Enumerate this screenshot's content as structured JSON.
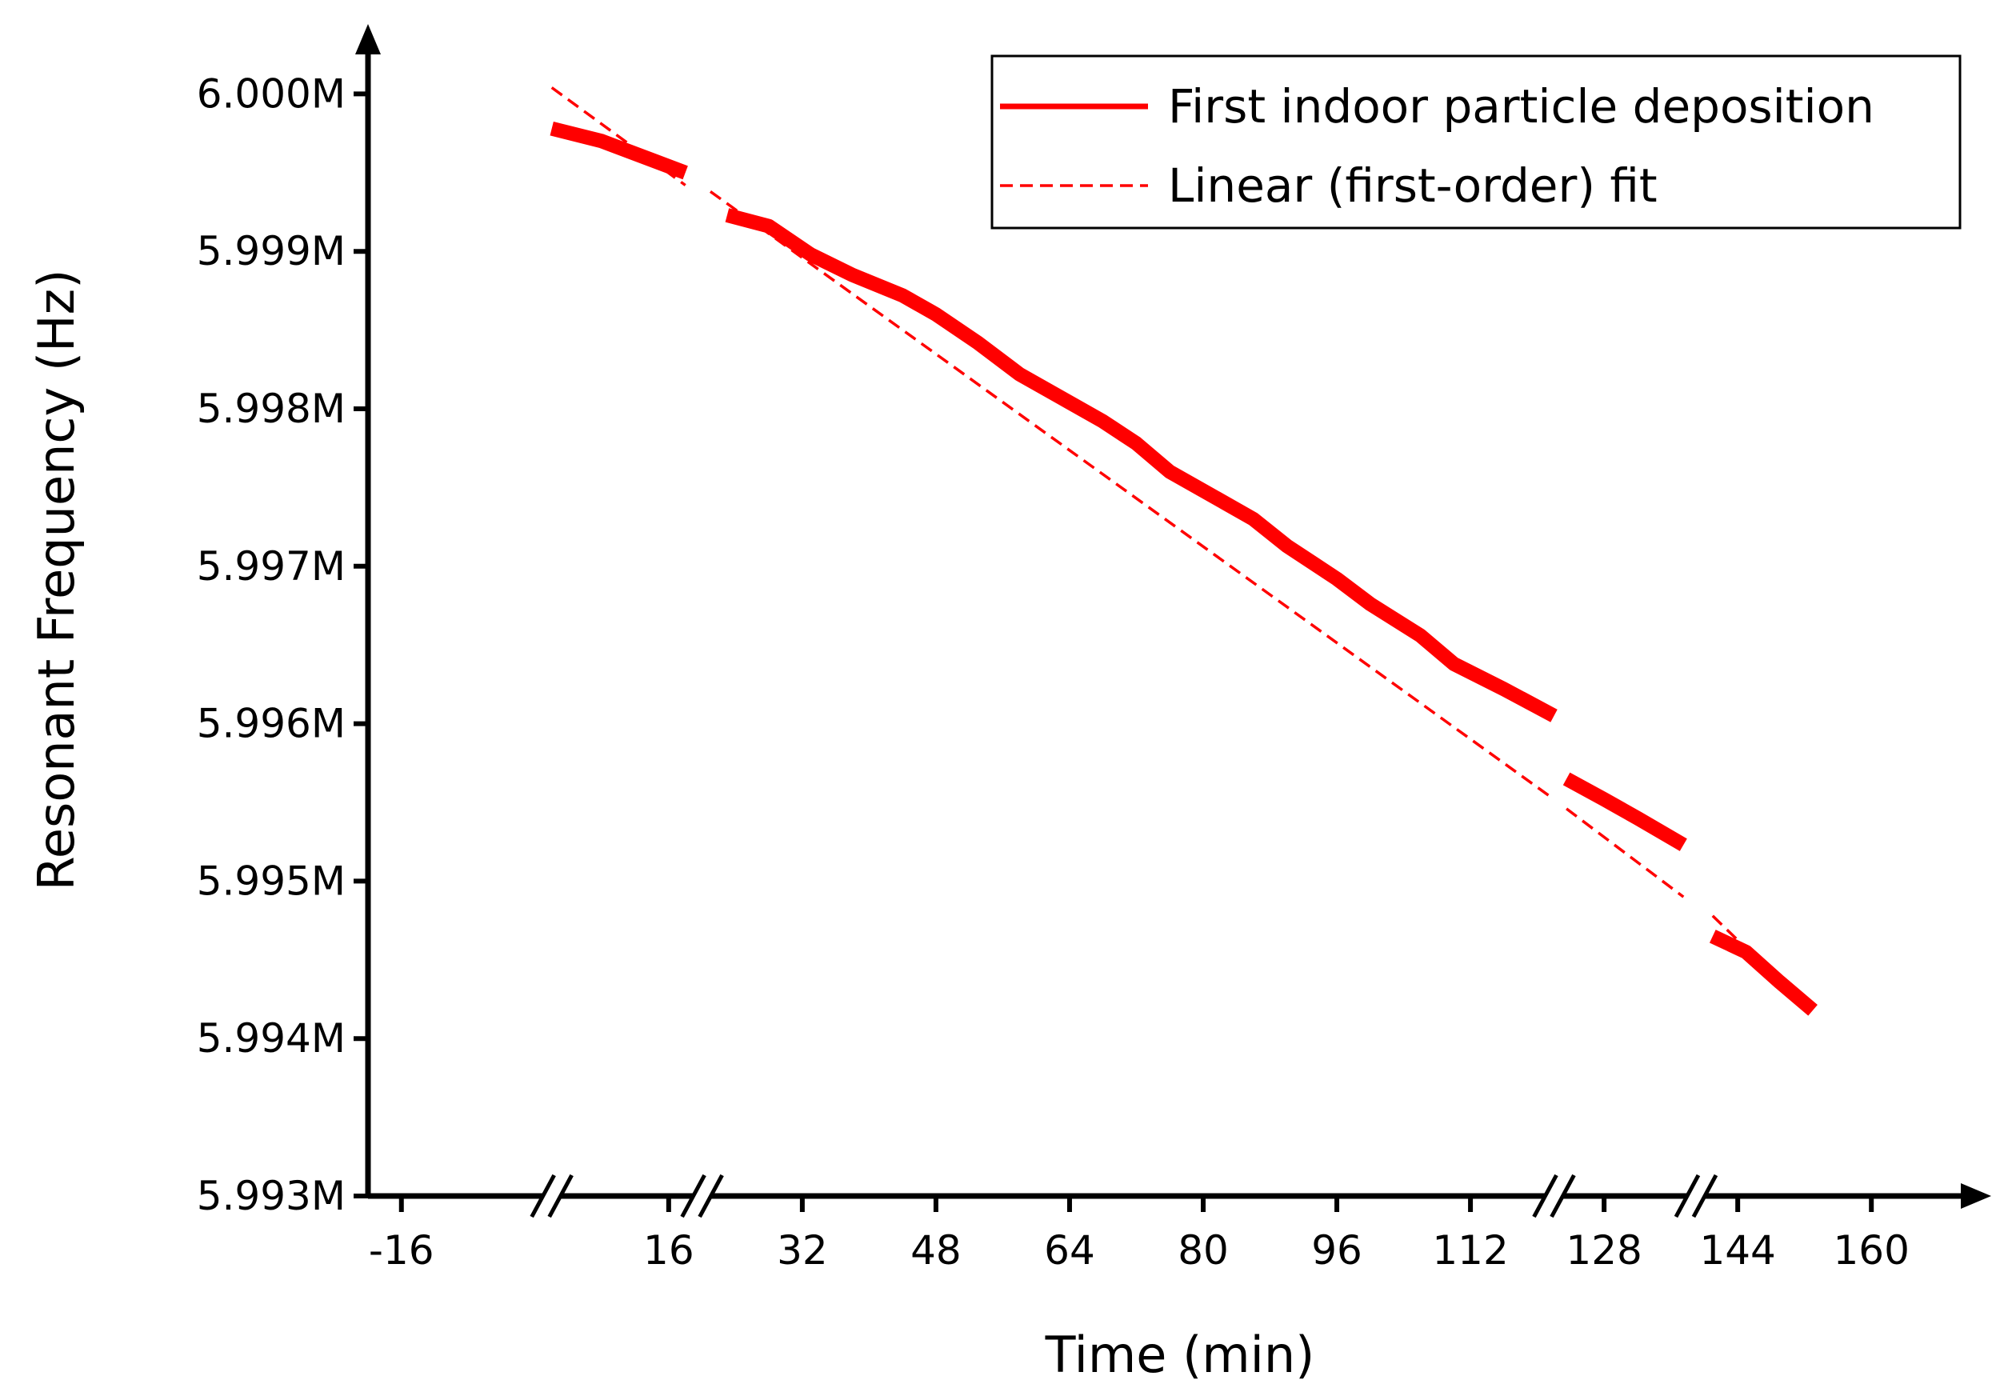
{
  "chart_data": {
    "type": "line",
    "title": "",
    "xlabel": "Time (min)",
    "ylabel": "Resonant Frequency (Hz)",
    "xlim": [
      -20,
      167
    ],
    "ylim": [
      5993000,
      6000400
    ],
    "x_ticks": [
      -16,
      16,
      32,
      48,
      64,
      80,
      96,
      112,
      128,
      144,
      160
    ],
    "y_ticks": [
      5993000,
      5994000,
      5995000,
      5996000,
      5997000,
      5998000,
      5999000,
      6000000
    ],
    "y_tick_labels": [
      "5.993M",
      "5.994M",
      "5.995M",
      "5.996M",
      "5.997M",
      "5.998M",
      "5.999M",
      "6.000M"
    ],
    "axis_breaks_x": [
      2,
      20,
      122,
      139
    ],
    "grid": false,
    "legend_position": "top-right",
    "colors": {
      "series": "#ff0000",
      "axis": "#000000"
    },
    "series": [
      {
        "name": "First indoor particle deposition",
        "style": "solid",
        "segments": [
          {
            "x": [
              2,
              8,
              14,
              18
            ],
            "y": [
              5999780,
              5999700,
              5999580,
              5999500
            ]
          },
          {
            "x": [
              23,
              28,
              33,
              38,
              44,
              48,
              53,
              58,
              63,
              68,
              72,
              76,
              80,
              86,
              90,
              96,
              100,
              106,
              110,
              116,
              122
            ],
            "y": [
              5999230,
              5999160,
              5998980,
              5998850,
              5998720,
              5998600,
              5998420,
              5998220,
              5998070,
              5997920,
              5997780,
              5997600,
              5997480,
              5997300,
              5997130,
              5996920,
              5996760,
              5996560,
              5996380,
              5996220,
              5996050
            ]
          },
          {
            "x": [
              123.5,
              128,
              132,
              137.5
            ],
            "y": [
              5995650,
              5995520,
              5995400,
              5995230
            ]
          },
          {
            "x": [
              141,
              145,
              149,
              153
            ],
            "y": [
              5994650,
              5994550,
              5994360,
              5994180
            ]
          }
        ]
      },
      {
        "name": "Linear (first-order) fit",
        "style": "dashed",
        "segments": [
          {
            "x": [
              2,
              18
            ],
            "y": [
              6000040,
              5999420
            ]
          },
          {
            "x": [
              21,
              122
            ],
            "y": [
              5999380,
              5995520
            ]
          },
          {
            "x": [
              123.5,
              137.5
            ],
            "y": [
              5995460,
              5994900
            ]
          },
          {
            "x": [
              141,
              153
            ],
            "y": [
              5994780,
              5994160
            ]
          }
        ]
      }
    ]
  }
}
